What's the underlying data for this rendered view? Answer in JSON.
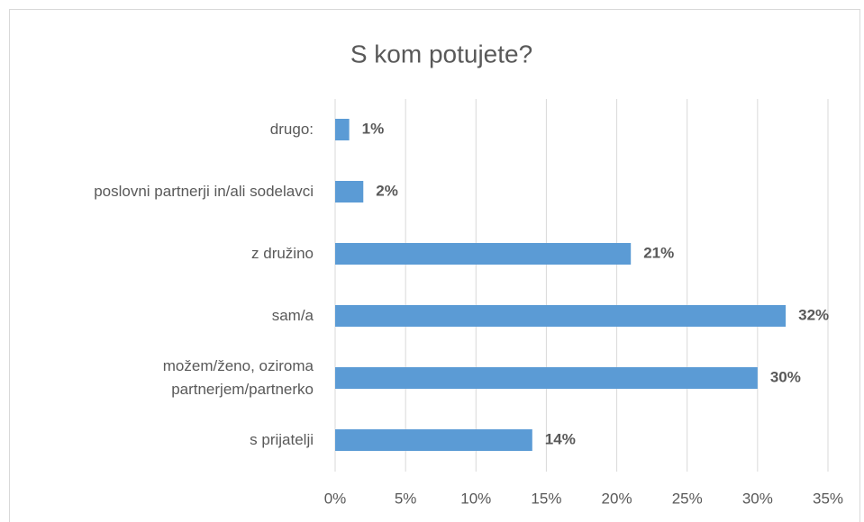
{
  "chart_data": {
    "type": "bar",
    "orientation": "horizontal",
    "title": "S kom potujete?",
    "categories": [
      "drugo:",
      "poslovni partnerji in/ali sodelavci",
      "z družino",
      "sam/a",
      "možem/ženo, oziroma\npartnerjem/partnerko",
      "s prijatelji"
    ],
    "values": [
      1,
      2,
      21,
      32,
      30,
      14
    ],
    "value_labels": [
      "1%",
      "2%",
      "21%",
      "32%",
      "30%",
      "14%"
    ],
    "color": "#5b9bd5",
    "xlim": [
      0,
      35
    ],
    "xticks": [
      {
        "value": 0,
        "label": "0%"
      },
      {
        "value": 5,
        "label": "5%"
      },
      {
        "value": 10,
        "label": "10%"
      },
      {
        "value": 15,
        "label": "15%"
      },
      {
        "value": 20,
        "label": "20%"
      },
      {
        "value": 25,
        "label": "25%"
      },
      {
        "value": 30,
        "label": "30%"
      },
      {
        "value": 35,
        "label": "35%"
      }
    ],
    "grid": true
  }
}
